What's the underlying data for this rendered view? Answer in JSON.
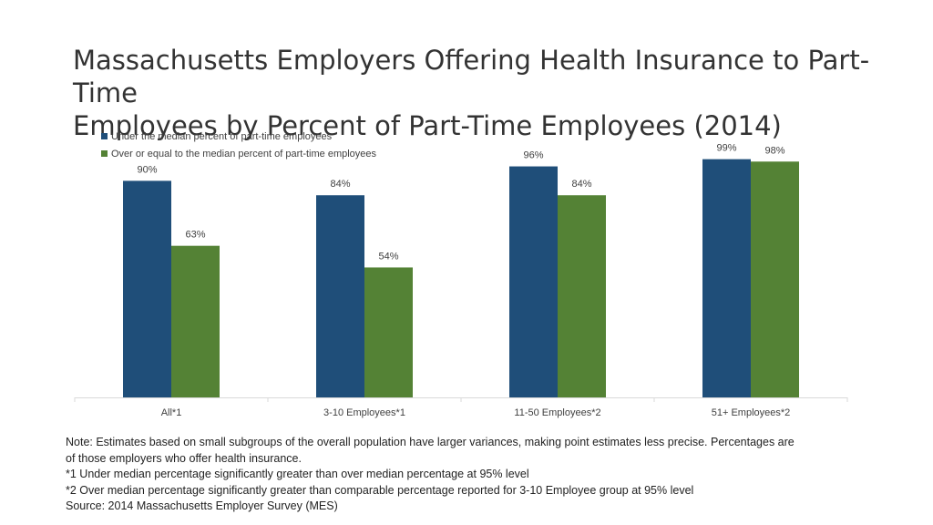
{
  "title_lines": [
    "Massachusetts Employers Offering Health Insurance to Part-Time",
    "Employees by Percent of Part-Time Employees (2014)"
  ],
  "chart_data": {
    "type": "bar",
    "categories": [
      "All*1",
      "3-10 Employees*1",
      "11-50 Employees*2",
      "51+ Employees*2"
    ],
    "series": [
      {
        "name": "Under the median percent of part-time employees",
        "color": "#1f4e79",
        "values": [
          90,
          84,
          96,
          99
        ],
        "labels": [
          "90%",
          "84%",
          "96%",
          "99%"
        ]
      },
      {
        "name": "Over or equal to the median percent of part-time employees",
        "color": "#548235",
        "values": [
          63,
          54,
          84,
          98
        ],
        "labels": [
          "63%",
          "54%",
          "84%",
          "98%"
        ]
      }
    ],
    "ylim": [
      0,
      100
    ],
    "legend_position": "top-left",
    "grid": false
  },
  "notes": [
    "Note: Estimates based on small subgroups of the overall population have larger variances, making point estimates less precise. Percentages are",
    "of those employers who offer health insurance.",
    "*1 Under median percentage significantly greater than over median percentage at 95% level",
    "*2 Over median percentage significantly greater than comparable percentage reported for 3-10 Employee group at 95% level",
    "Source: 2014 Massachusetts Employer Survey (MES)"
  ]
}
